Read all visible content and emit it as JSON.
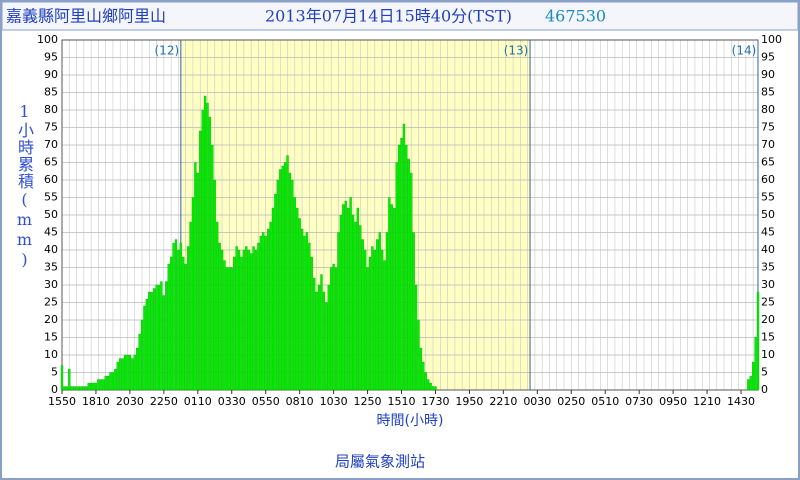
{
  "chart_data": {
    "type": "bar",
    "location": "嘉義縣阿里山鄉阿里山",
    "timestamp": "2013年07月14日15時40分(TST)",
    "station_id": "467530",
    "y_label": "1小時累積(mm)",
    "x_label": "時間(小時)",
    "footer": "局屬氣象測站",
    "annotations": [
      "(12)",
      "(13)",
      "(14)"
    ],
    "color": "#00ee00",
    "grid": true,
    "ylim": [
      0,
      100
    ],
    "yticks": [
      0,
      5,
      10,
      15,
      20,
      25,
      30,
      35,
      40,
      45,
      50,
      55,
      60,
      65,
      70,
      75,
      80,
      85,
      90,
      95,
      100
    ],
    "categories": [
      "1550",
      null,
      null,
      null,
      null,
      null,
      null,
      null,
      null,
      null,
      null,
      null,
      null,
      null,
      "1810",
      null,
      null,
      null,
      null,
      null,
      null,
      null,
      null,
      null,
      null,
      null,
      null,
      null,
      "2030",
      null,
      null,
      null,
      null,
      null,
      null,
      null,
      null,
      null,
      null,
      null,
      null,
      null,
      "2250",
      null,
      null,
      null,
      null,
      null,
      null,
      null,
      null,
      null,
      null,
      null,
      null,
      null,
      "0110",
      null,
      null,
      null,
      null,
      null,
      null,
      null,
      null,
      null,
      null,
      null,
      null,
      null,
      "0330",
      null,
      null,
      null,
      null,
      null,
      null,
      null,
      null,
      null,
      null,
      null,
      null,
      null,
      "0550",
      null,
      null,
      null,
      null,
      null,
      null,
      null,
      null,
      null,
      null,
      null,
      null,
      null,
      "0810",
      null,
      null,
      null,
      null,
      null,
      null,
      null,
      null,
      null,
      null,
      null,
      null,
      null,
      "1030",
      null,
      null,
      null,
      null,
      null,
      null,
      null,
      null,
      null,
      null,
      null,
      null,
      null,
      "1250",
      null,
      null,
      null,
      null,
      null,
      null,
      null,
      null,
      null,
      null,
      null,
      null,
      null,
      "1510",
      null,
      null,
      null,
      null,
      null,
      null,
      null,
      null,
      null,
      null,
      null,
      null,
      null,
      "1730",
      null,
      null,
      null,
      null,
      null,
      null,
      null,
      null,
      null,
      null,
      null,
      null,
      null,
      "1950",
      null,
      null,
      null,
      null,
      null,
      null,
      null,
      null,
      null,
      null,
      null,
      null,
      null,
      "2210",
      null,
      null,
      null,
      null,
      null,
      null,
      null,
      null,
      null,
      null,
      null,
      null,
      null,
      "0030",
      null,
      null,
      null,
      null,
      null,
      null,
      null,
      null,
      null,
      null,
      null,
      null,
      null,
      "0250",
      null,
      null,
      null,
      null,
      null,
      null,
      null,
      null,
      null,
      null,
      null,
      null,
      null,
      "0510",
      null,
      null,
      null,
      null,
      null,
      null,
      null,
      null,
      null,
      null,
      null,
      null,
      null,
      "0730",
      null,
      null,
      null,
      null,
      null,
      null,
      null,
      null,
      null,
      null,
      null,
      null,
      null,
      "0950",
      null,
      null,
      null,
      null,
      null,
      null,
      null,
      null,
      null,
      null,
      null,
      null,
      null,
      "1210",
      null,
      null,
      null,
      null,
      null,
      null,
      null,
      null,
      null,
      null,
      null,
      null,
      null,
      "1430",
      null,
      null,
      null,
      null,
      null,
      null,
      null
    ],
    "values": [
      7,
      1,
      1,
      6,
      1,
      1,
      1,
      1,
      1,
      1,
      1,
      2,
      2,
      2,
      2,
      3,
      3,
      3,
      4,
      4,
      5,
      5,
      6,
      8,
      9,
      9,
      10,
      10,
      10,
      9,
      10,
      12,
      16,
      20,
      24,
      26,
      28,
      28,
      29,
      30,
      30,
      31,
      27,
      31,
      36,
      38,
      42,
      43,
      40,
      42,
      38,
      36,
      41,
      48,
      55,
      65,
      62,
      74,
      80,
      84,
      82,
      78,
      70,
      60,
      48,
      42,
      40,
      37,
      35,
      35,
      35,
      38,
      41,
      40,
      38,
      40,
      41,
      40,
      39,
      41,
      40,
      42,
      44,
      45,
      44,
      46,
      48,
      52,
      56,
      60,
      63,
      64,
      65,
      67,
      62,
      60,
      55,
      52,
      49,
      46,
      44,
      45,
      42,
      38,
      32,
      28,
      30,
      33,
      28,
      25,
      30,
      35,
      36,
      35,
      45,
      50,
      53,
      54,
      52,
      55,
      50,
      48,
      52,
      47,
      43,
      40,
      35,
      38,
      41,
      40,
      43,
      45,
      40,
      37,
      45,
      55,
      53,
      52,
      65,
      70,
      72,
      76,
      70,
      66,
      62,
      45,
      30,
      20,
      12,
      8,
      5,
      3,
      2,
      1,
      1,
      0,
      0,
      0,
      0,
      0,
      0,
      0,
      0,
      0,
      0,
      0,
      0,
      0,
      0,
      0,
      0,
      0,
      0,
      0,
      0,
      0,
      0,
      0,
      0,
      0,
      0,
      0,
      0,
      0,
      0,
      0,
      0,
      0,
      0,
      0,
      0,
      0,
      0,
      0,
      0,
      0,
      0,
      0,
      0,
      0,
      0,
      0,
      0,
      0,
      0,
      0,
      0,
      0,
      0,
      0,
      0,
      0,
      0,
      0,
      0,
      0,
      0,
      0,
      0,
      0,
      0,
      0,
      0,
      0,
      0,
      0,
      0,
      0,
      0,
      0,
      0,
      0,
      0,
      0,
      0,
      0,
      0,
      0,
      0,
      0,
      0,
      0,
      0,
      0,
      0,
      0,
      0,
      0,
      0,
      0,
      0,
      0,
      0,
      0,
      0,
      0,
      0,
      0,
      0,
      0,
      0,
      0,
      0,
      0,
      0,
      0,
      0,
      0,
      0,
      0,
      0,
      0,
      0,
      0,
      0,
      0,
      0,
      0,
      0,
      0,
      0,
      0,
      0,
      3,
      4,
      8,
      15,
      28
    ]
  }
}
